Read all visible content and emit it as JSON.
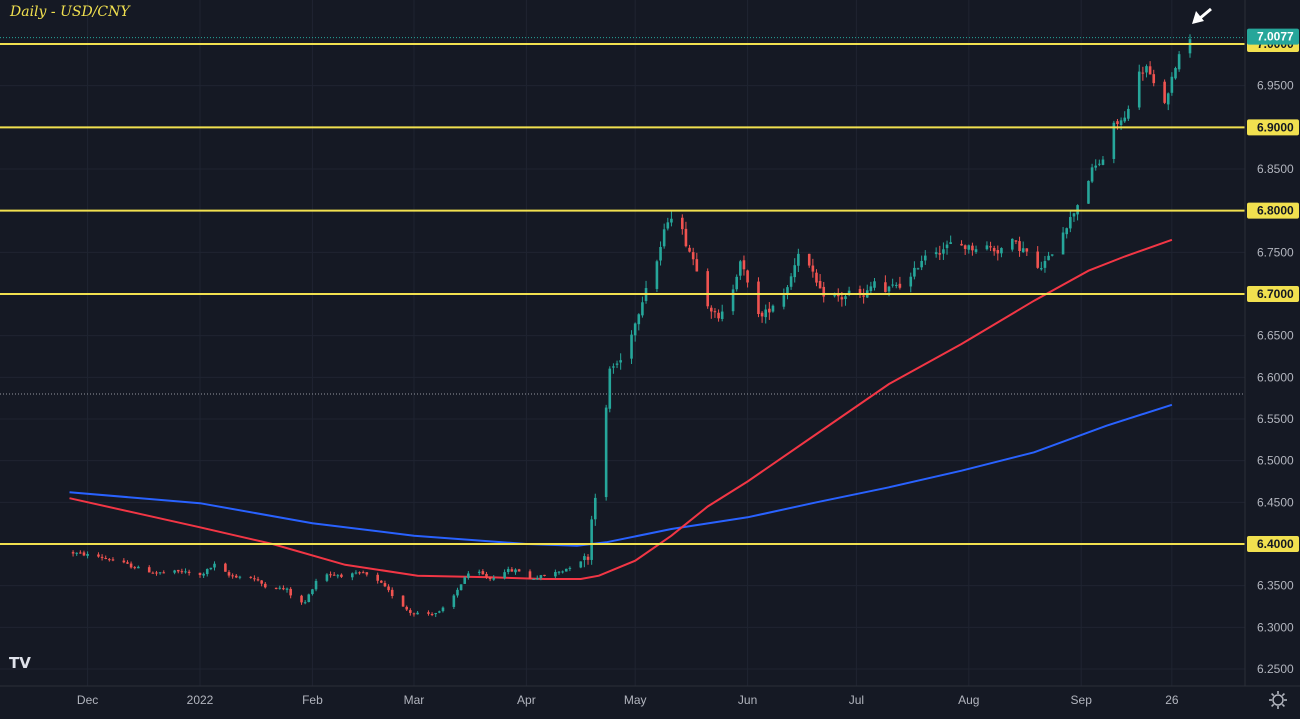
{
  "chart_data": {
    "type": "candlestick",
    "title": "Daily - USD/CNY",
    "symbol": "USD/CNY",
    "timeframe": "Daily",
    "ylim": [
      6.225,
      7.025
    ],
    "x_range_days": [
      -36,
      334
    ],
    "price_ticks": [
      "7.0000",
      "6.9500",
      "6.9000",
      "6.8500",
      "6.8000",
      "6.7500",
      "6.7000",
      "6.6500",
      "6.6000",
      "6.5500",
      "6.5000",
      "6.4500",
      "6.4000",
      "6.3500",
      "6.3000",
      "6.2500"
    ],
    "time_ticks": [
      {
        "label": "Dec",
        "day": -31
      },
      {
        "label": "2022",
        "day": 0
      },
      {
        "label": "Feb",
        "day": 31
      },
      {
        "label": "Mar",
        "day": 59
      },
      {
        "label": "Apr",
        "day": 90
      },
      {
        "label": "May",
        "day": 120
      },
      {
        "label": "Jun",
        "day": 151
      },
      {
        "label": "Jul",
        "day": 181
      },
      {
        "label": "Aug",
        "day": 212
      },
      {
        "label": "Sep",
        "day": 243
      },
      {
        "label": "26",
        "day": 268
      }
    ],
    "last_price": "7.0077",
    "horizontal_levels": [
      {
        "label": "7.0000",
        "price": 7.0
      },
      {
        "label": "6.9000",
        "price": 6.9
      },
      {
        "label": "6.8000",
        "price": 6.8
      },
      {
        "label": "6.7000",
        "price": 6.7
      },
      {
        "label": "6.4000",
        "price": 6.4
      }
    ],
    "dotted_level": 6.58,
    "anchors": [
      [
        -36,
        6.39
      ],
      [
        -28,
        6.385
      ],
      [
        -22,
        6.378
      ],
      [
        -18,
        6.372
      ],
      [
        -12,
        6.365
      ],
      [
        -5,
        6.367
      ],
      [
        0,
        6.362
      ],
      [
        4,
        6.375
      ],
      [
        8,
        6.362
      ],
      [
        14,
        6.36
      ],
      [
        18,
        6.35
      ],
      [
        24,
        6.345
      ],
      [
        27,
        6.328
      ],
      [
        29,
        6.33
      ],
      [
        33,
        6.365
      ],
      [
        40,
        6.362
      ],
      [
        45,
        6.365
      ],
      [
        50,
        6.352
      ],
      [
        55,
        6.33
      ],
      [
        58,
        6.318
      ],
      [
        62,
        6.316
      ],
      [
        66,
        6.318
      ],
      [
        69,
        6.33
      ],
      [
        73,
        6.36
      ],
      [
        76,
        6.368
      ],
      [
        80,
        6.358
      ],
      [
        84,
        6.368
      ],
      [
        88,
        6.368
      ],
      [
        91,
        6.358
      ],
      [
        95,
        6.362
      ],
      [
        100,
        6.368
      ],
      [
        104,
        6.378
      ],
      [
        107,
        6.385
      ],
      [
        108,
        6.43
      ],
      [
        110,
        6.49
      ],
      [
        112,
        6.56
      ],
      [
        113,
        6.61
      ],
      [
        116,
        6.62
      ],
      [
        118,
        6.645
      ],
      [
        120,
        6.665
      ],
      [
        123,
        6.71
      ],
      [
        126,
        6.74
      ],
      [
        129,
        6.79
      ],
      [
        131,
        6.8
      ],
      [
        134,
        6.762
      ],
      [
        137,
        6.732
      ],
      [
        140,
        6.69
      ],
      [
        143,
        6.668
      ],
      [
        146,
        6.692
      ],
      [
        149,
        6.742
      ],
      [
        152,
        6.695
      ],
      [
        155,
        6.672
      ],
      [
        158,
        6.688
      ],
      [
        161,
        6.7
      ],
      [
        163,
        6.722
      ],
      [
        165,
        6.752
      ],
      [
        168,
        6.732
      ],
      [
        171,
        6.702
      ],
      [
        174,
        6.698
      ],
      [
        177,
        6.695
      ],
      [
        180,
        6.705
      ],
      [
        183,
        6.695
      ],
      [
        186,
        6.715
      ],
      [
        189,
        6.702
      ],
      [
        192,
        6.712
      ],
      [
        195,
        6.71
      ],
      [
        198,
        6.735
      ],
      [
        201,
        6.755
      ],
      [
        204,
        6.752
      ],
      [
        208,
        6.762
      ],
      [
        212,
        6.755
      ],
      [
        216,
        6.758
      ],
      [
        220,
        6.752
      ],
      [
        224,
        6.762
      ],
      [
        228,
        6.75
      ],
      [
        231,
        6.728
      ],
      [
        234,
        6.742
      ],
      [
        237,
        6.77
      ],
      [
        240,
        6.79
      ],
      [
        243,
        6.818
      ],
      [
        246,
        6.848
      ],
      [
        249,
        6.862
      ],
      [
        251,
        6.898
      ],
      [
        253,
        6.905
      ],
      [
        255,
        6.91
      ],
      [
        258,
        6.96
      ],
      [
        261,
        6.972
      ],
      [
        263,
        6.95
      ],
      [
        265,
        6.925
      ],
      [
        267,
        6.938
      ],
      [
        269,
        6.975
      ],
      [
        271,
        7.0
      ],
      [
        273,
        7.008
      ]
    ],
    "ma_slow": {
      "color": "#2962ff",
      "points": [
        [
          -36,
          6.462
        ],
        [
          0,
          6.449
        ],
        [
          31,
          6.425
        ],
        [
          59,
          6.41
        ],
        [
          90,
          6.4
        ],
        [
          104,
          6.398
        ],
        [
          112,
          6.402
        ],
        [
          130,
          6.418
        ],
        [
          151,
          6.432
        ],
        [
          170,
          6.45
        ],
        [
          190,
          6.468
        ],
        [
          210,
          6.488
        ],
        [
          230,
          6.51
        ],
        [
          250,
          6.542
        ],
        [
          268,
          6.567
        ]
      ]
    },
    "ma_fast": {
      "color": "#f23645",
      "points": [
        [
          -36,
          6.455
        ],
        [
          0,
          6.42
        ],
        [
          20,
          6.4
        ],
        [
          40,
          6.375
        ],
        [
          60,
          6.362
        ],
        [
          80,
          6.36
        ],
        [
          95,
          6.358
        ],
        [
          105,
          6.358
        ],
        [
          110,
          6.362
        ],
        [
          120,
          6.38
        ],
        [
          130,
          6.41
        ],
        [
          140,
          6.445
        ],
        [
          151,
          6.475
        ],
        [
          170,
          6.532
        ],
        [
          190,
          6.592
        ],
        [
          210,
          6.64
        ],
        [
          230,
          6.692
        ],
        [
          245,
          6.728
        ],
        [
          255,
          6.745
        ],
        [
          268,
          6.765
        ]
      ]
    },
    "colors": {
      "background": "#151924",
      "up": "#26a69a",
      "down": "#ef5350",
      "level": "#f1e04f",
      "grid": "#1f2431",
      "axis_text": "#b2b5be",
      "last_price_tag": "#26a69a"
    },
    "annotation": "white arrow pointing to the latest candle near 7.0077",
    "grid": true
  },
  "icons": {
    "logo": "tradingview-logo-icon",
    "settings": "gear-icon"
  },
  "logo_text": "TV"
}
